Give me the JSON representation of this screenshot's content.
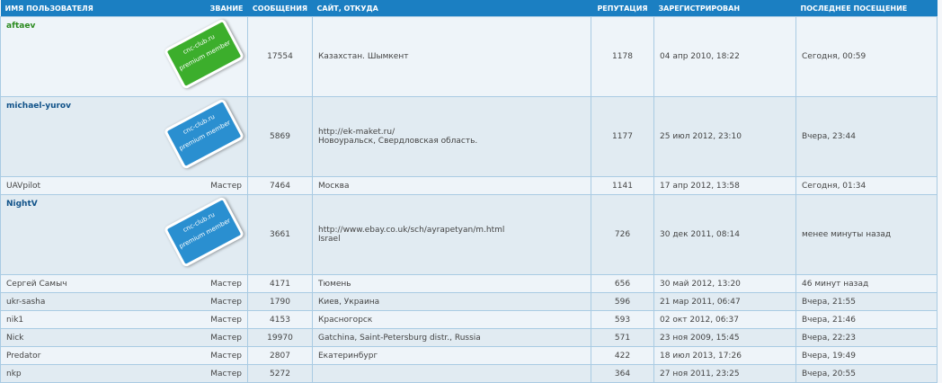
{
  "header": {
    "name": "ИМЯ ПОЛЬЗОВАТЕЛЯ",
    "rank": "ЗВАНИЕ",
    "posts": "СООБЩЕНИЯ",
    "site": "САЙТ, ОТКУДА",
    "reputation": "РЕПУТАЦИЯ",
    "registered": "ЗАРЕГИСТРИРОВАН",
    "last_visit": "ПОСЛЕДНЕЕ ПОСЕЩЕНИЕ"
  },
  "rows": [
    {
      "name": "aftaev",
      "name_color": "#2a8a1e",
      "badge": {
        "text": "cnc-club.ru",
        "label": "premium member",
        "color": "#3cae2c"
      },
      "posts": "17554",
      "location": "Казахстан. Шымкент",
      "reputation": "1178",
      "registered": "04 апр 2010, 18:22",
      "last_visit": "Сегодня, 00:59"
    },
    {
      "name": "michael-yurov",
      "name_color": "#105289",
      "badge": {
        "text": "cnc-club.ru",
        "label": "premium member",
        "color": "#2a8fd0"
      },
      "posts": "5869",
      "site": "http://ek-maket.ru/",
      "location": "Новоуральск, Свердловская область.",
      "reputation": "1177",
      "registered": "25 июл 2012, 23:10",
      "last_visit": "Вчера, 23:44"
    },
    {
      "name": "UAVpilot",
      "rank": "Мастер",
      "posts": "7464",
      "location": "Москва",
      "reputation": "1141",
      "registered": "17 апр 2012, 13:58",
      "last_visit": "Сегодня, 01:34"
    },
    {
      "name": "NightV",
      "name_color": "#105289",
      "badge": {
        "text": "cnc-club.ru",
        "label": "premium member",
        "color": "#2a8fd0"
      },
      "posts": "3661",
      "site": "http://www.ebay.co.uk/sch/ayrapetyan/m.html",
      "location": "Israel",
      "reputation": "726",
      "registered": "30 дек 2011, 08:14",
      "last_visit": "менее минуты назад"
    },
    {
      "name": "Сергей Самыч",
      "rank": "Мастер",
      "posts": "4171",
      "location": "Тюмень",
      "reputation": "656",
      "registered": "30 май 2012, 13:20",
      "last_visit": "46 минут назад"
    },
    {
      "name": "ukr-sasha",
      "rank": "Мастер",
      "posts": "1790",
      "location": "Киев, Украина",
      "reputation": "596",
      "registered": "21 мар 2011, 06:47",
      "last_visit": "Вчера, 21:55"
    },
    {
      "name": "nik1",
      "rank": "Мастер",
      "posts": "4153",
      "location": "Красногорск",
      "reputation": "593",
      "registered": "02 окт 2012, 06:37",
      "last_visit": "Вчера, 21:46"
    },
    {
      "name": "Nick",
      "rank": "Мастер",
      "posts": "19970",
      "location": "Gatchina, Saint-Petersburg distr., Russia",
      "reputation": "571",
      "registered": "23 ноя 2009, 15:45",
      "last_visit": "Вчера, 22:23"
    },
    {
      "name": "Predator",
      "rank": "Мастер",
      "posts": "2807",
      "location": "Екатеринбург",
      "reputation": "422",
      "registered": "18 июл 2013, 17:26",
      "last_visit": "Вчера, 19:49"
    },
    {
      "name": "nkp",
      "rank": "Мастер",
      "posts": "5272",
      "reputation": "364",
      "registered": "27 ноя 2011, 23:25",
      "last_visit": "Вчера, 20:55"
    }
  ]
}
